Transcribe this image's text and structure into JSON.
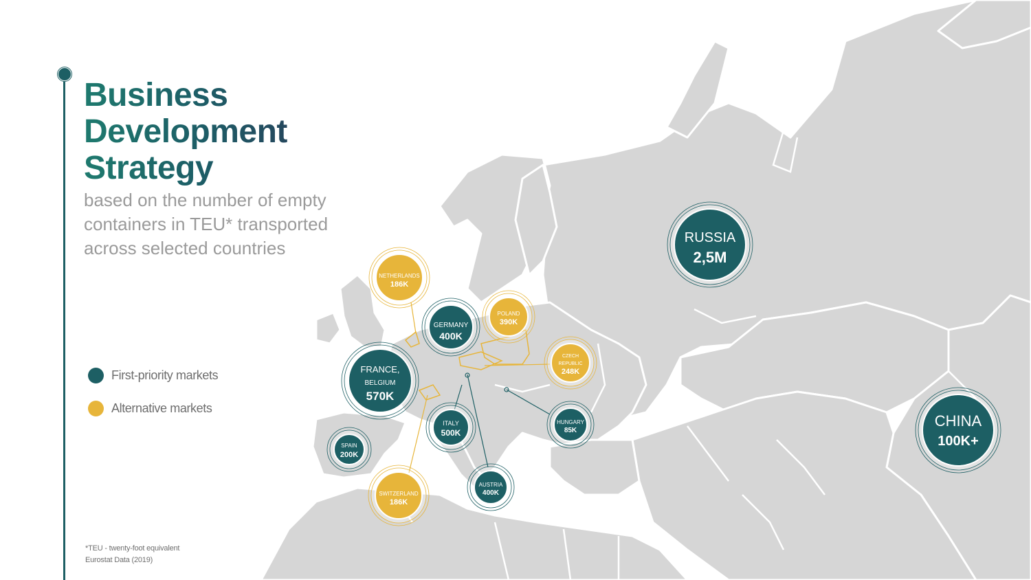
{
  "title_lines": [
    "Business",
    "Development",
    "Strategy"
  ],
  "subtitle": "based on the number of empty containers in TEU* transported across selected countries",
  "legend": [
    {
      "label": "First-priority markets",
      "color": "#1d5f64"
    },
    {
      "label": "Alternative markets",
      "color": "#e7b53a"
    }
  ],
  "footnote": [
    "*TEU - twenty-foot equivalent",
    "Eurostat Data (2019)"
  ],
  "colors": {
    "primary": "#1d5f64",
    "alternative": "#e7b53a",
    "land": "#d6d6d6",
    "text_grey": "#9a9a9a"
  },
  "markets": [
    {
      "id": "russia",
      "name": "RUSSIA",
      "value": "2,5M",
      "tier": "primary"
    },
    {
      "id": "china",
      "name": "CHINA",
      "value": "100K+",
      "tier": "primary"
    },
    {
      "id": "france",
      "name": "FRANCE,",
      "name2": "BELGIUM",
      "value": "570K",
      "tier": "primary"
    },
    {
      "id": "germany",
      "name": "GERMANY",
      "value": "400K",
      "tier": "primary"
    },
    {
      "id": "italy",
      "name": "ITALY",
      "value": "500K",
      "tier": "primary"
    },
    {
      "id": "spain",
      "name": "SPAIN",
      "value": "200K",
      "tier": "primary"
    },
    {
      "id": "austria",
      "name": "AUSTRIA",
      "value": "400K",
      "tier": "primary"
    },
    {
      "id": "hungary",
      "name": "HUNGARY",
      "value": "85K",
      "tier": "primary"
    },
    {
      "id": "netherlands",
      "name": "NETHERLANDS",
      "value": "186K",
      "tier": "alternative"
    },
    {
      "id": "poland",
      "name": "POLAND",
      "value": "390K",
      "tier": "alternative"
    },
    {
      "id": "czech",
      "name": "CZECH",
      "name2": "REPUBLIC",
      "value": "248K",
      "tier": "alternative"
    },
    {
      "id": "switzerland",
      "name": "SWITZERLAND",
      "value": "186K",
      "tier": "alternative"
    }
  ]
}
